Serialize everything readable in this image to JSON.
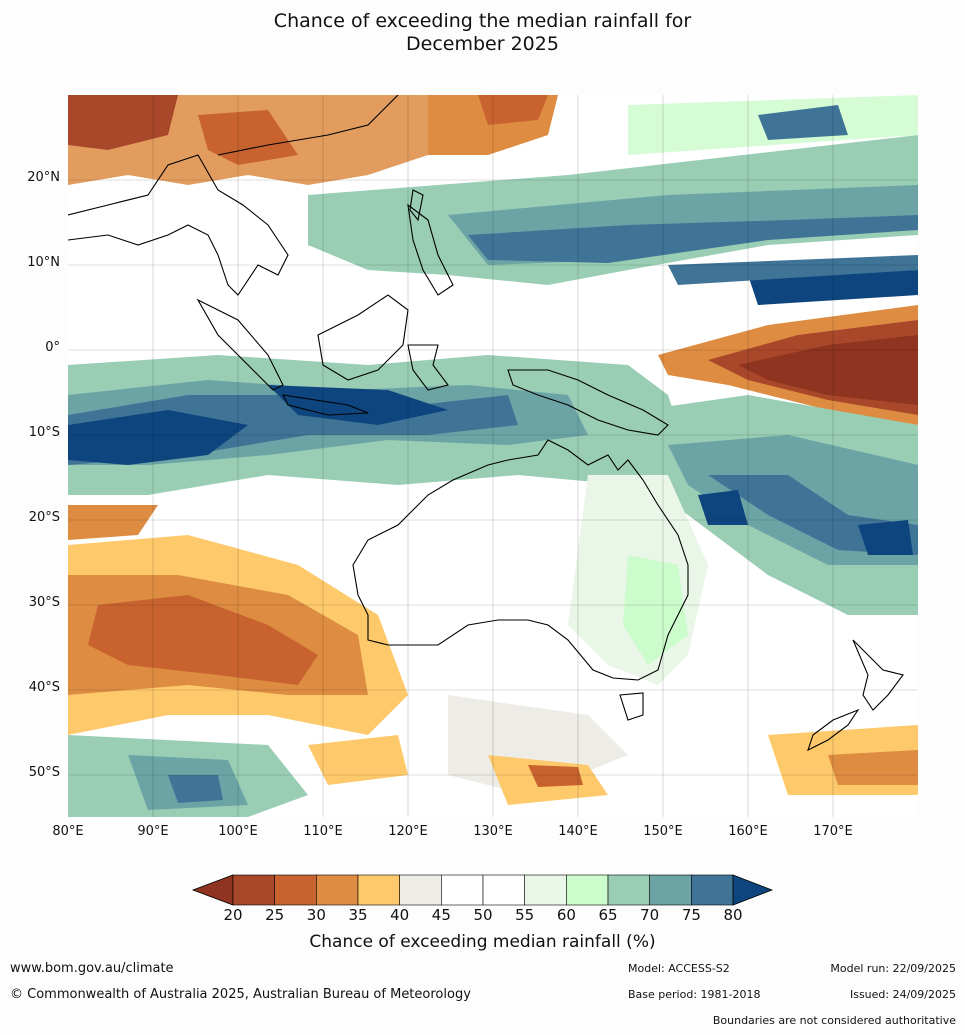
{
  "title": {
    "line1": "Chance of exceeding the median rainfall for",
    "line2": "December 2025"
  },
  "map": {
    "region": "Australia and surrounding region",
    "lat_labels": [
      "20°N",
      "10°N",
      "0°",
      "10°S",
      "20°S",
      "30°S",
      "40°S",
      "50°S"
    ],
    "lon_labels": [
      "80°E",
      "90°E",
      "100°E",
      "110°E",
      "120°E",
      "130°E",
      "140°E",
      "150°E",
      "160°E",
      "170°E"
    ],
    "lat_range": [
      -55,
      30
    ],
    "lon_range": [
      80,
      180
    ]
  },
  "colorbar": {
    "ticks": [
      "20",
      "25",
      "30",
      "35",
      "40",
      "45",
      "50",
      "55",
      "60",
      "65",
      "70",
      "75",
      "80"
    ],
    "colors": [
      "#a9472a",
      "#c8632f",
      "#dd8c42",
      "#fdc96a",
      "#eeece6",
      "#ffffff",
      "#ffffff",
      "#e9f6e8",
      "#ccfbcc",
      "#99cdb4",
      "#6ca4a6",
      "#3f7497"
    ],
    "under_color": "#8e3420",
    "over_color": "#0e457e",
    "label": "Chance of exceeding median rainfall (%)"
  },
  "footer": {
    "website": "www.bom.gov.au/climate",
    "copyright": "© Commonwealth of Australia 2025, Australian Bureau of Meteorology",
    "model": "Model: ACCESS-S2",
    "base_period": "Base period: 1981-2018",
    "model_run": "Model run: 22/09/2025",
    "issued": "Issued: 24/09/2025",
    "disclaimer": "Boundaries are not considered authoritative"
  }
}
